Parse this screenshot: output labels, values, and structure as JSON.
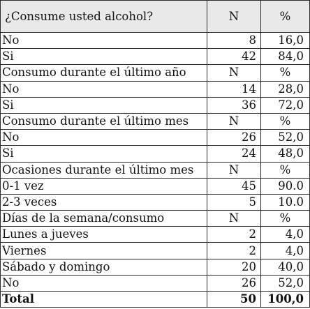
{
  "header": {
    "question": "¿Consume usted alcohol?",
    "n": "N",
    "pct": "%"
  },
  "rows": [
    {
      "label": "No",
      "n": "8",
      "pct": "16,0",
      "kind": "data"
    },
    {
      "label": "Si",
      "n": "42",
      "pct": "84,0",
      "kind": "data"
    },
    {
      "label": "Consumo durante el último año",
      "n": "N",
      "pct": "%",
      "kind": "sub"
    },
    {
      "label": "No",
      "n": "14",
      "pct": "28,0",
      "kind": "data"
    },
    {
      "label": "Si",
      "n": "36",
      "pct": "72,0",
      "kind": "data"
    },
    {
      "label": "Consumo durante el último mes",
      "n": "N",
      "pct": "%",
      "kind": "sub"
    },
    {
      "label": "No",
      "n": "26",
      "pct": "52,0",
      "kind": "data"
    },
    {
      "label": "Si",
      "n": "24",
      "pct": "48,0",
      "kind": "data"
    },
    {
      "label": "Ocasiones durante el último mes",
      "n": "N",
      "pct": "%",
      "kind": "sub"
    },
    {
      "label": "0-1 vez",
      "n": "45",
      "pct": "90.0",
      "kind": "data"
    },
    {
      "label": "2-3 veces",
      "n": "5",
      "pct": "10.0",
      "kind": "data"
    },
    {
      "label": "Días de la semana/consumo",
      "n": "N",
      "pct": "%",
      "kind": "sub"
    },
    {
      "label": "Lunes a jueves",
      "n": "2",
      "pct": "4,0",
      "kind": "data"
    },
    {
      "label": "Viernes",
      "n": "2",
      "pct": "4,0",
      "kind": "data"
    },
    {
      "label": "Sábado y domingo",
      "n": "20",
      "pct": "40,0",
      "kind": "data"
    },
    {
      "label": "No",
      "n": "26",
      "pct": "52,0",
      "kind": "data"
    },
    {
      "label": "Total",
      "n": "50",
      "pct": "100,0",
      "kind": "total"
    }
  ]
}
